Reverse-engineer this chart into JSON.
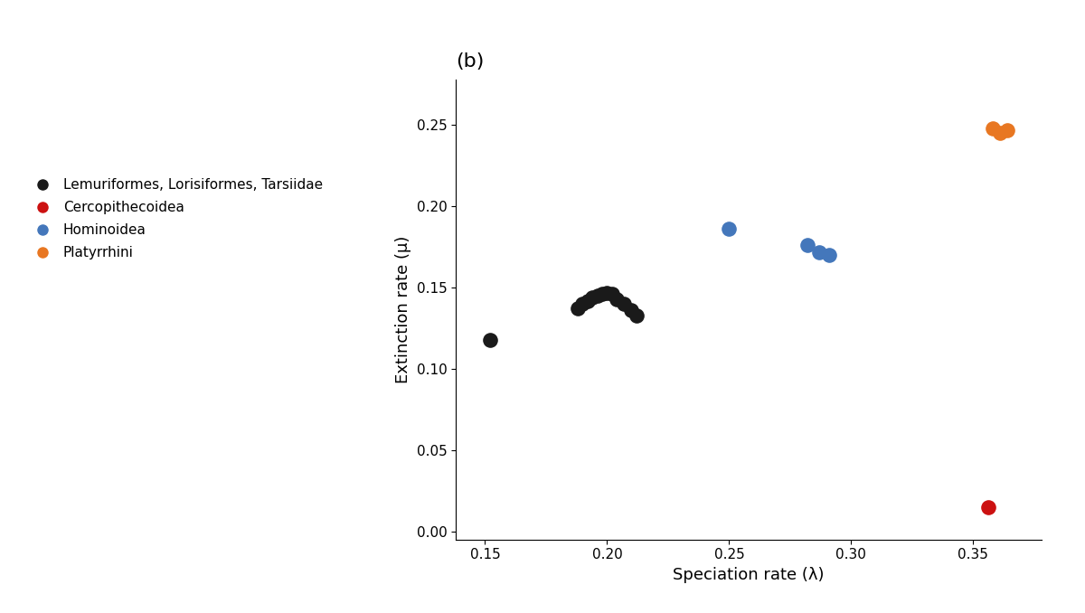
{
  "title": "(b)",
  "xlabel": "Speciation rate (λ)",
  "ylabel": "Extinction rate (μ)",
  "xlim": [
    0.138,
    0.378
  ],
  "ylim": [
    -0.005,
    0.278
  ],
  "xticks": [
    0.15,
    0.2,
    0.25,
    0.3,
    0.35
  ],
  "yticks": [
    0.0,
    0.05,
    0.1,
    0.15,
    0.2,
    0.25
  ],
  "groups": {
    "Lemuriformes, Lorisiformes, Tarsiidae": {
      "color": "#1a1a1a",
      "points": [
        [
          0.152,
          0.118
        ],
        [
          0.188,
          0.137
        ],
        [
          0.19,
          0.14
        ],
        [
          0.192,
          0.142
        ],
        [
          0.194,
          0.144
        ],
        [
          0.196,
          0.145
        ],
        [
          0.198,
          0.146
        ],
        [
          0.2,
          0.147
        ],
        [
          0.202,
          0.146
        ],
        [
          0.204,
          0.143
        ],
        [
          0.207,
          0.14
        ],
        [
          0.21,
          0.136
        ],
        [
          0.212,
          0.133
        ]
      ]
    },
    "Cercopithecoidea": {
      "color": "#cc1111",
      "points": [
        [
          0.356,
          0.015
        ]
      ]
    },
    "Hominoidea": {
      "color": "#4477bb",
      "points": [
        [
          0.25,
          0.186
        ],
        [
          0.282,
          0.176
        ],
        [
          0.287,
          0.172
        ],
        [
          0.291,
          0.17
        ]
      ]
    },
    "Platyrrhini": {
      "color": "#e87722",
      "points": [
        [
          0.358,
          0.248
        ],
        [
          0.361,
          0.245
        ],
        [
          0.364,
          0.247
        ]
      ]
    }
  },
  "background_color": "#ffffff",
  "marker_size": 120,
  "label_fontsize": 13,
  "title_fontsize": 16,
  "tick_fontsize": 11,
  "legend_fontsize": 11,
  "legend_entries": [
    "Lemuriformes, Lorisiformes, Tarsiidae",
    "Cercopithecoidea",
    "Hominoidea",
    "Platyrrhini"
  ],
  "legend_colors": [
    "#1a1a1a",
    "#cc1111",
    "#4477bb",
    "#e87722"
  ]
}
